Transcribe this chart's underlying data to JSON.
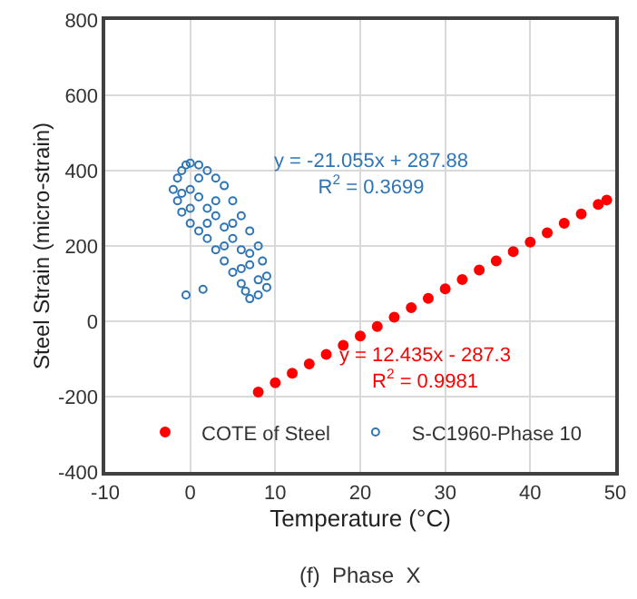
{
  "chart_data": {
    "type": "scatter",
    "xlabel": "Temperature (°C)",
    "ylabel": "Steel Strain (micro-strain)",
    "xlim": [
      -10,
      50
    ],
    "xticks": [
      -10,
      0,
      10,
      20,
      30,
      40,
      50
    ],
    "ylim": [
      -400,
      800
    ],
    "yticks": [
      -400,
      -200,
      0,
      200,
      400,
      600,
      800
    ],
    "grid": true,
    "legend": "bottom",
    "marker": "circle",
    "series": [
      {
        "name": "COTE of Steel",
        "color": "#ff0000",
        "x": [
          8,
          10,
          12,
          14,
          16,
          18,
          20,
          22,
          24,
          26,
          28,
          30,
          32,
          34,
          36,
          38,
          40,
          42,
          44,
          46,
          48,
          49
        ],
        "values": [
          -188,
          -163,
          -138,
          -113,
          -88,
          -64,
          -39,
          -14,
          11,
          36,
          61,
          86,
          111,
          136,
          160,
          185,
          210,
          235,
          260,
          285,
          310,
          322
        ]
      },
      {
        "name": "S-C1960-Phase 10",
        "color": "#2e75b6",
        "x": [
          -1.5,
          -1,
          -0.5,
          0,
          1,
          2,
          3,
          4,
          5,
          6,
          7,
          8,
          8.5,
          9,
          9,
          8,
          7,
          6.5,
          6,
          5,
          4,
          3,
          2,
          1,
          0,
          -1,
          -1.5,
          -2,
          0,
          1,
          2,
          3,
          4,
          5,
          6,
          7,
          1,
          3,
          5,
          7,
          -1,
          0,
          2,
          4,
          6,
          8,
          -0.5,
          1.5
        ],
        "values": [
          380,
          400,
          415,
          420,
          415,
          400,
          380,
          360,
          320,
          280,
          240,
          200,
          160,
          120,
          90,
          70,
          60,
          80,
          100,
          130,
          160,
          190,
          220,
          240,
          260,
          290,
          320,
          350,
          350,
          330,
          300,
          280,
          250,
          220,
          190,
          150,
          380,
          320,
          260,
          180,
          340,
          300,
          260,
          200,
          140,
          110,
          70,
          85
        ]
      }
    ],
    "annotations": [
      "y = -21.055x + 287.88\nR$^{2}$ = 0.3699",
      "y = 12.435x - 287.3\nR$^{2}$ = 0.9981",
      "(f)  Phase  X"
    ]
  }
}
